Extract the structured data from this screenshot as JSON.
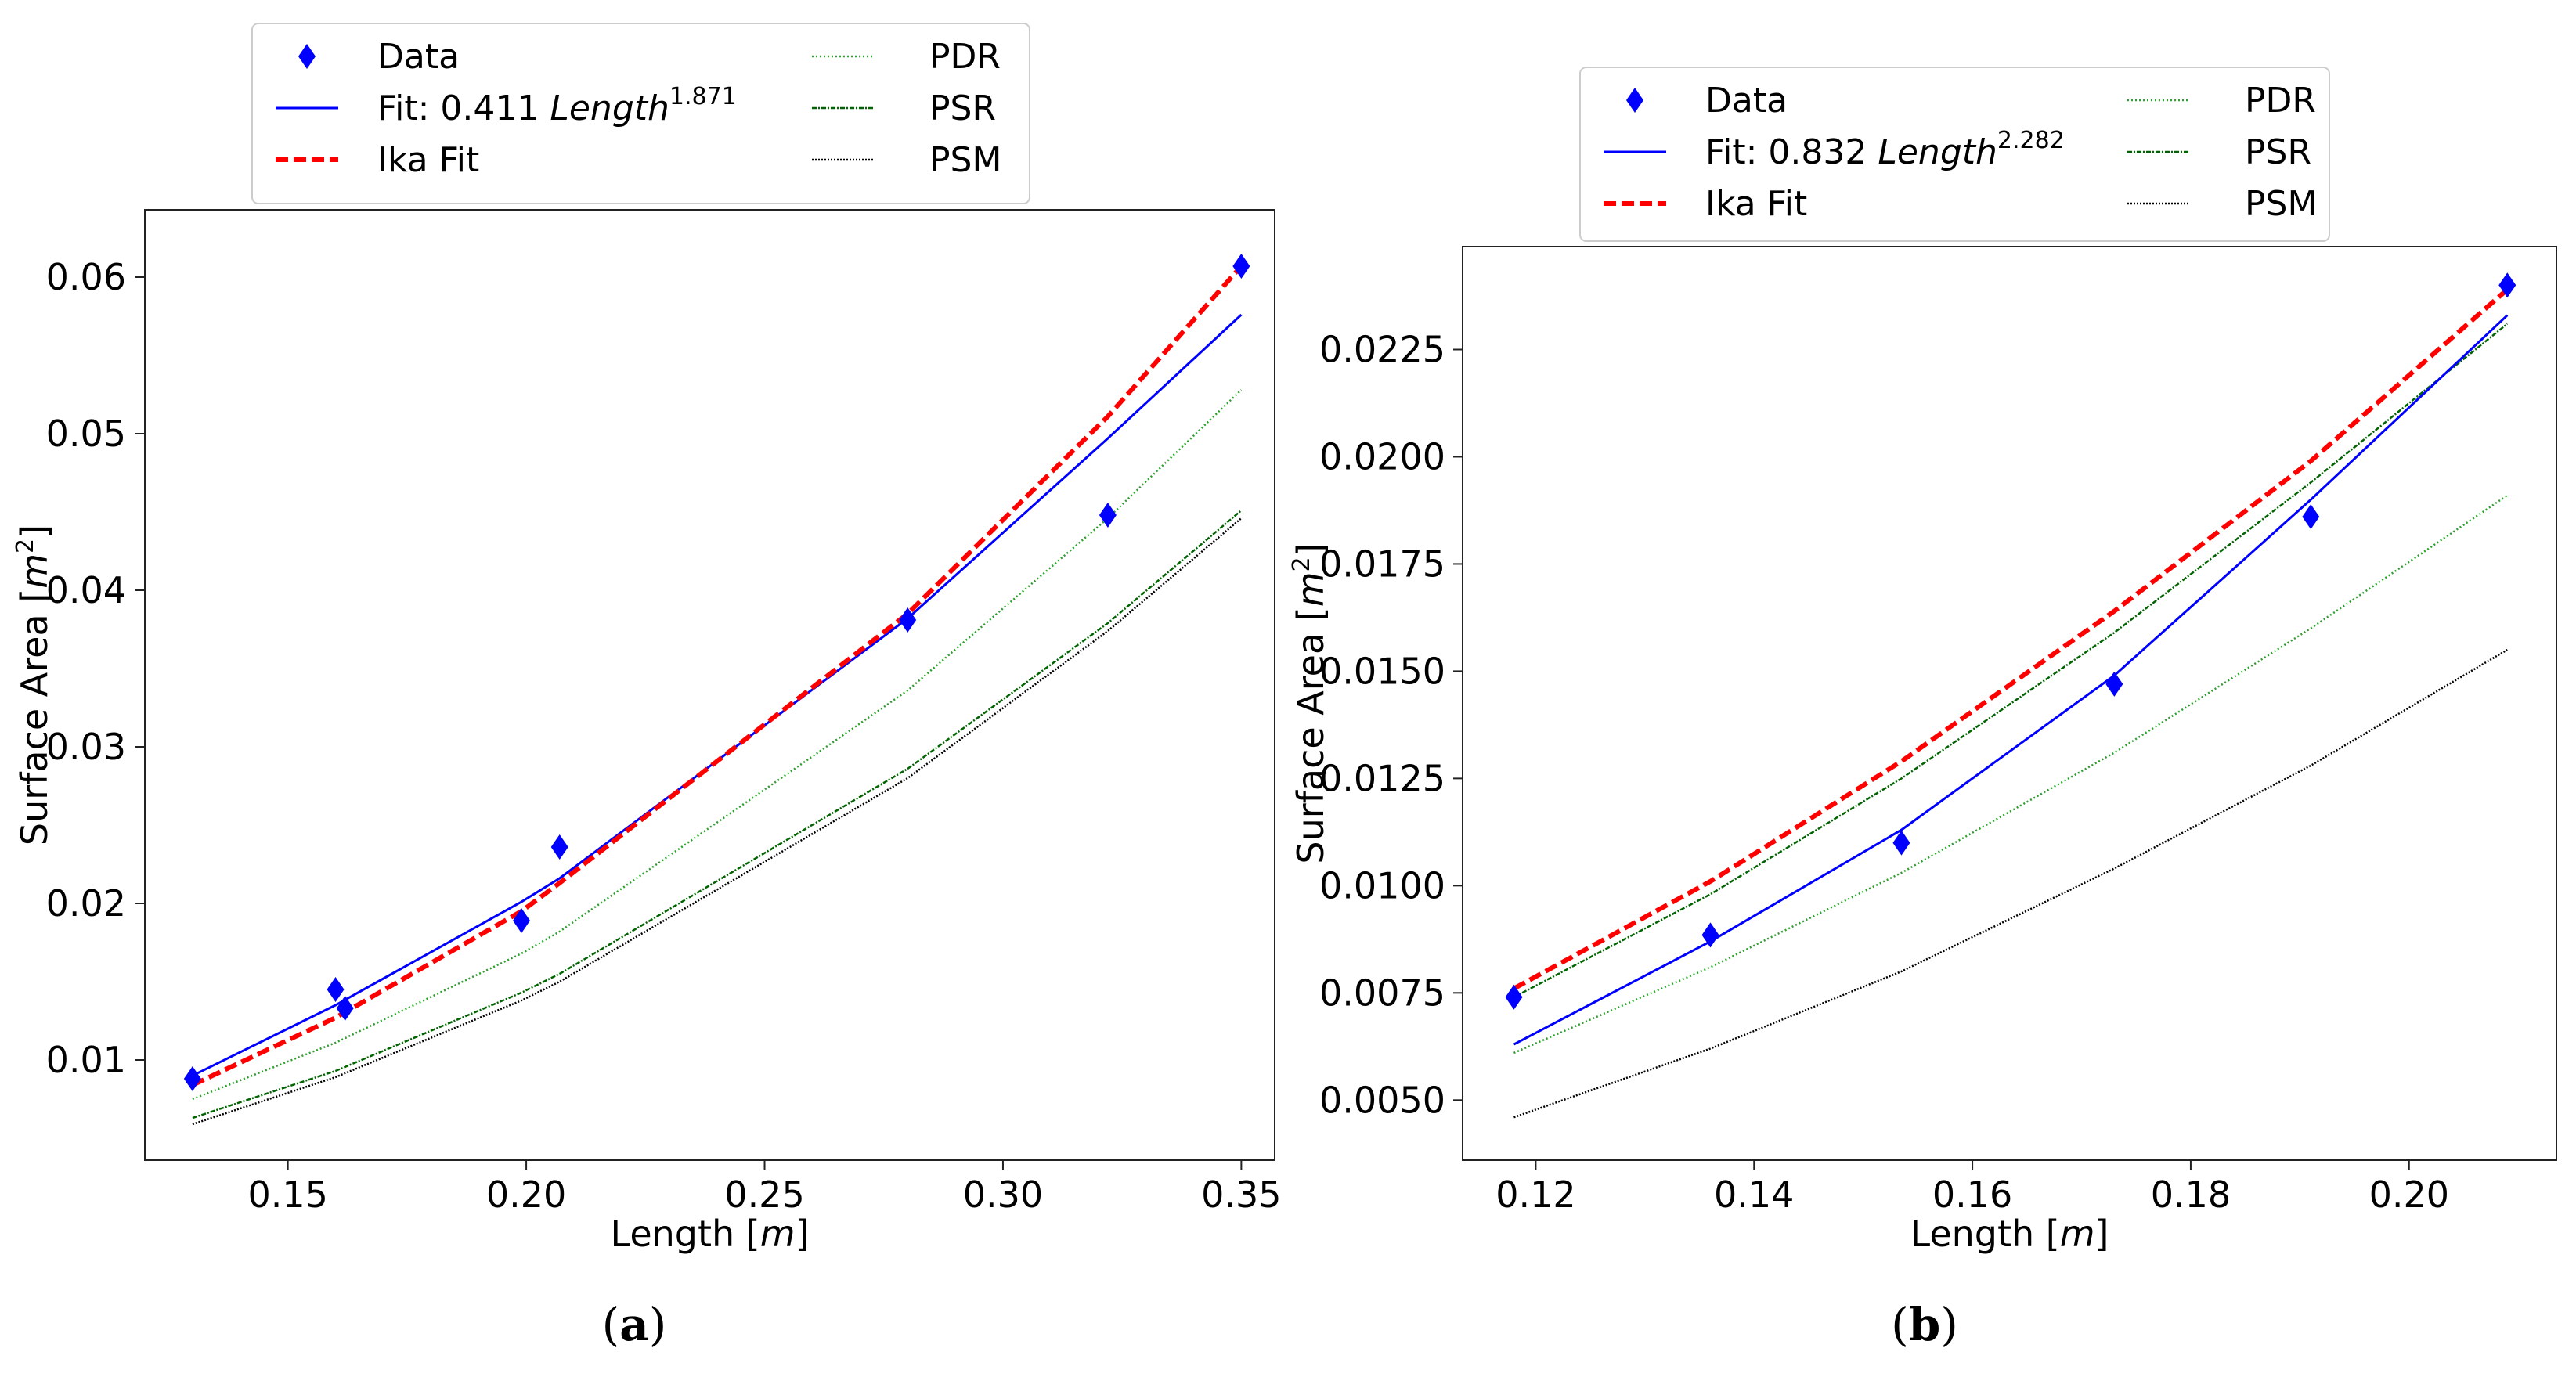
{
  "chart_data": [
    {
      "type": "line",
      "panel_label": "a",
      "xlabel": "Length",
      "xunit": "m",
      "ylabel": "Surface Area",
      "yunit": "m",
      "yunit_exp": "2",
      "xlim": [
        0.12,
        0.357
      ],
      "ylim": [
        0.0036,
        0.0643
      ],
      "xticks": [
        0.15,
        0.2,
        0.25,
        0.3,
        0.35
      ],
      "xtick_labels": [
        "0.15",
        "0.20",
        "0.25",
        "0.30",
        "0.35"
      ],
      "yticks": [
        0.01,
        0.02,
        0.03,
        0.04,
        0.05,
        0.06
      ],
      "ytick_labels": [
        "0.01",
        "0.02",
        "0.03",
        "0.04",
        "0.05",
        "0.06"
      ],
      "legend": {
        "placement": "above",
        "entries": [
          {
            "label": "Data",
            "style": "marker"
          },
          {
            "label": "Fit: 0.411 ",
            "italic": "Length",
            "sup": "1.871",
            "style": "solid"
          },
          {
            "label": "Ika Fit",
            "style": "dashed"
          },
          {
            "label": "PDR",
            "style": "dotted"
          },
          {
            "label": "PSR",
            "style": "dashdot"
          },
          {
            "label": "PSM",
            "style": "dotted-black"
          }
        ]
      },
      "series": [
        {
          "name": "Data",
          "color": "#0000ff",
          "style": "marker",
          "x": [
            0.13,
            0.16,
            0.162,
            0.199,
            0.207,
            0.28,
            0.322,
            0.35
          ],
          "y": [
            0.0088,
            0.0145,
            0.0133,
            0.0189,
            0.0236,
            0.0381,
            0.0448,
            0.0607
          ]
        },
        {
          "name": "Fit",
          "color": "#0000ff",
          "style": "solid",
          "x": [
            0.13,
            0.16,
            0.199,
            0.207,
            0.28,
            0.322,
            0.35
          ],
          "y": [
            0.009,
            0.0135,
            0.0201,
            0.0216,
            0.0382,
            0.0497,
            0.0576
          ]
        },
        {
          "name": "Ika Fit",
          "color": "#ff0000",
          "style": "dashed",
          "x": [
            0.13,
            0.16,
            0.199,
            0.207,
            0.28,
            0.322,
            0.35
          ],
          "y": [
            0.0084,
            0.0127,
            0.0195,
            0.0213,
            0.0385,
            0.0511,
            0.0607
          ]
        },
        {
          "name": "PDR",
          "color": "#2ca02c",
          "style": "dotted",
          "x": [
            0.13,
            0.16,
            0.199,
            0.207,
            0.28,
            0.322,
            0.35
          ],
          "y": [
            0.0075,
            0.0111,
            0.0168,
            0.0182,
            0.0336,
            0.0446,
            0.0528
          ]
        },
        {
          "name": "PSR",
          "color": "#006400",
          "style": "dashdot",
          "x": [
            0.13,
            0.16,
            0.199,
            0.207,
            0.28,
            0.322,
            0.35
          ],
          "y": [
            0.0063,
            0.0093,
            0.0143,
            0.0155,
            0.0286,
            0.0379,
            0.0451
          ]
        },
        {
          "name": "PSM",
          "color": "#000000",
          "style": "dotted-black",
          "x": [
            0.13,
            0.16,
            0.199,
            0.207,
            0.28,
            0.322,
            0.35
          ],
          "y": [
            0.0059,
            0.0089,
            0.0138,
            0.015,
            0.028,
            0.0374,
            0.0446
          ]
        }
      ]
    },
    {
      "type": "line",
      "panel_label": "b",
      "xlabel": "Length",
      "xunit": "m",
      "ylabel": "Surface Area",
      "yunit": "m",
      "yunit_exp": "2",
      "xlim": [
        0.1133,
        0.2135
      ],
      "ylim": [
        0.0036,
        0.0249
      ],
      "xticks": [
        0.12,
        0.14,
        0.16,
        0.18,
        0.2
      ],
      "xtick_labels": [
        "0.12",
        "0.14",
        "0.16",
        "0.18",
        "0.20"
      ],
      "yticks": [
        0.005,
        0.0075,
        0.01,
        0.0125,
        0.015,
        0.0175,
        0.02,
        0.0225
      ],
      "ytick_labels": [
        "0.0050",
        "0.0075",
        "0.0100",
        "0.0125",
        "0.0150",
        "0.0175",
        "0.0200",
        "0.0225"
      ],
      "legend": {
        "placement": "above",
        "entries": [
          {
            "label": "Data",
            "style": "marker"
          },
          {
            "label": "Fit: 0.832 ",
            "italic": "Length",
            "sup": "2.282",
            "style": "solid"
          },
          {
            "label": "Ika Fit",
            "style": "dashed"
          },
          {
            "label": "PDR",
            "style": "dotted"
          },
          {
            "label": "PSR",
            "style": "dashdot"
          },
          {
            "label": "PSM",
            "style": "dotted-black"
          }
        ]
      },
      "series": [
        {
          "name": "Data",
          "color": "#0000ff",
          "style": "marker",
          "x": [
            0.118,
            0.136,
            0.1535,
            0.173,
            0.191,
            0.209
          ],
          "y": [
            0.0074,
            0.00885,
            0.011,
            0.0147,
            0.0186,
            0.024
          ]
        },
        {
          "name": "Fit",
          "color": "#0000ff",
          "style": "solid",
          "x": [
            0.118,
            0.136,
            0.1535,
            0.173,
            0.191,
            0.209
          ],
          "y": [
            0.0063,
            0.0087,
            0.0113,
            0.0149,
            0.019,
            0.0233
          ]
        },
        {
          "name": "Ika Fit",
          "color": "#ff0000",
          "style": "dashed",
          "x": [
            0.118,
            0.136,
            0.1535,
            0.173,
            0.191,
            0.209
          ],
          "y": [
            0.0076,
            0.0101,
            0.0129,
            0.0164,
            0.0199,
            0.0239
          ]
        },
        {
          "name": "PDR",
          "color": "#2ca02c",
          "style": "dotted",
          "x": [
            0.118,
            0.136,
            0.1535,
            0.173,
            0.191,
            0.209
          ],
          "y": [
            0.0061,
            0.0081,
            0.0103,
            0.0131,
            0.016,
            0.0191
          ]
        },
        {
          "name": "PSR",
          "color": "#006400",
          "style": "dashdot",
          "x": [
            0.118,
            0.136,
            0.1535,
            0.173,
            0.191,
            0.209
          ],
          "y": [
            0.0074,
            0.0098,
            0.0125,
            0.0159,
            0.0194,
            0.0231
          ]
        },
        {
          "name": "PSM",
          "color": "#000000",
          "style": "dotted-black",
          "x": [
            0.118,
            0.136,
            0.1535,
            0.173,
            0.191,
            0.209
          ],
          "y": [
            0.0046,
            0.0062,
            0.008,
            0.0104,
            0.0128,
            0.0155
          ]
        }
      ]
    }
  ]
}
